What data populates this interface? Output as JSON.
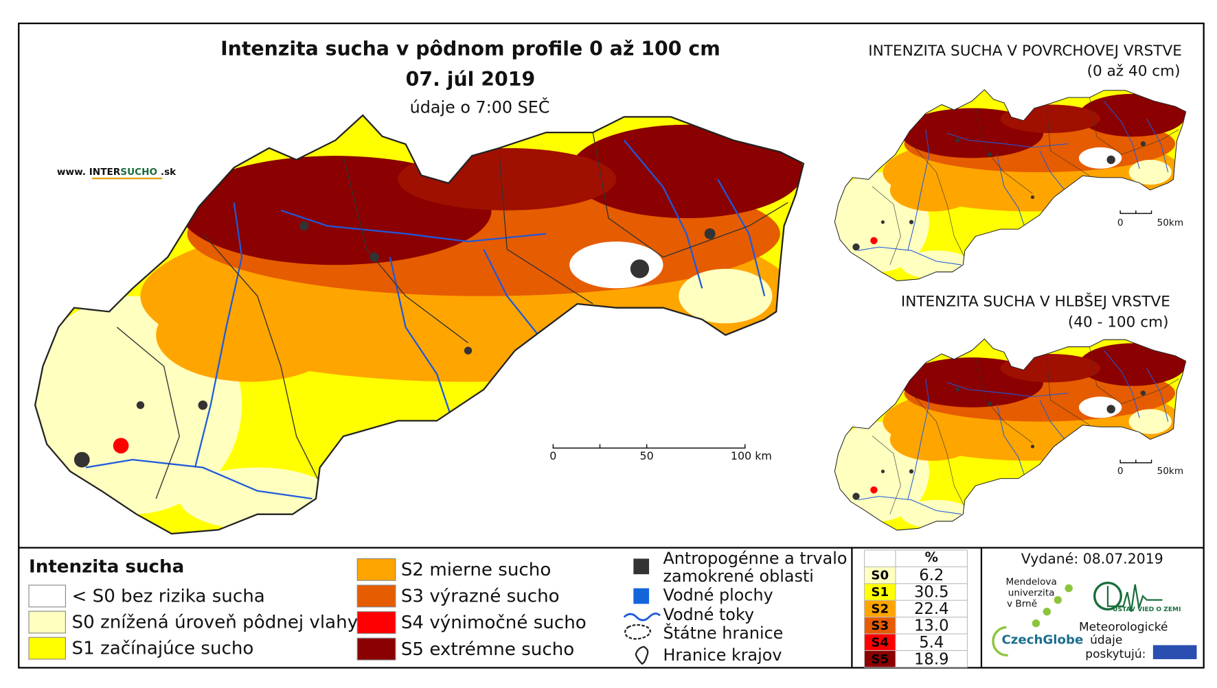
{
  "header": {
    "title": "Intenzita sucha v pôdnom profile 0 až 100 cm",
    "date": "07. júl 2019",
    "note": "údaje o 7:00 SEČ",
    "website": {
      "prefix": "www. INTER",
      "highlight": "SUCHO",
      "suffix": " .sk"
    }
  },
  "main_scale": [
    "0",
    "50",
    "100 km"
  ],
  "insets": [
    {
      "title": "INTENZITA SUCHA V POVRCHOVEJ VRSTVE",
      "subtitle": "(0 až 40 cm)",
      "scale": [
        "0",
        "50km"
      ]
    },
    {
      "title": "INTENZITA SUCHA V HLBŠEJ VRSTVE",
      "subtitle": "(40 - 100 cm)",
      "scale": [
        "0",
        "50km"
      ]
    }
  ],
  "legend": {
    "title": "Intenzita sucha",
    "classes": [
      {
        "label": "< S0 bez rizika sucha",
        "color": "#ffffff"
      },
      {
        "label": "S0 znížená úroveň pôdnej vlahy",
        "color": "#ffffc0"
      },
      {
        "label": "S1 začínajúce sucho",
        "color": "#ffff00"
      },
      {
        "label": "S2 mierne sucho",
        "color": "#ffa500"
      },
      {
        "label": "S3 výrazné sucho",
        "color": "#e65c00"
      },
      {
        "label": "S4 výnimočné sucho",
        "color": "#ff0000"
      },
      {
        "label": "S5 extrémne sucho",
        "color": "#8b0000"
      }
    ],
    "features": [
      [
        "Antropogénne a trvalo",
        "zamokrené oblasti"
      ],
      [
        "Vodné plochy"
      ],
      [
        "Vodné toky"
      ],
      [
        "Štátne hranice"
      ],
      [
        "Hranice krajov"
      ]
    ]
  },
  "stats": {
    "header": "%",
    "rows": [
      {
        "class": "S0",
        "percent": "6.2"
      },
      {
        "class": "S1",
        "percent": "30.5"
      },
      {
        "class": "S2",
        "percent": "22.4"
      },
      {
        "class": "S3",
        "percent": "13.0"
      },
      {
        "class": "S4",
        "percent": "5.4"
      },
      {
        "class": "S5",
        "percent": "18.9"
      }
    ]
  },
  "issued": "Vydané: 08.07.2019",
  "credits": {
    "mendel": [
      "Mendelova",
      "univerzita",
      "v Brně"
    ],
    "czechglobe": "CzechGlobe",
    "ustav": "ÚSTAV VIED O ZEMI",
    "providers": [
      "Meteorologické",
      "údaje",
      "poskytujú:"
    ]
  }
}
